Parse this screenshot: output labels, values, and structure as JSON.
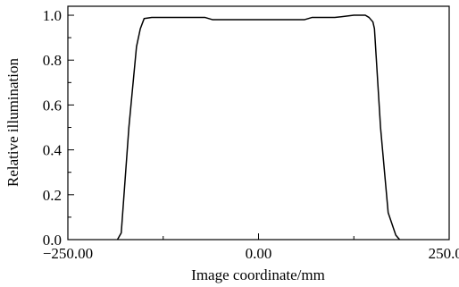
{
  "chart_data": {
    "type": "line",
    "title": "",
    "xlabel": "Image coordinate/mm",
    "ylabel": "Relative illumination",
    "xlim": [
      -250,
      250
    ],
    "ylim": [
      0,
      1.04
    ],
    "x_ticks": [
      {
        "value": -250,
        "label": "−250.00"
      },
      {
        "value": 0,
        "label": "0.00"
      },
      {
        "value": 250,
        "label": "250.00"
      }
    ],
    "y_ticks": [
      {
        "value": 0,
        "label": "0.0"
      },
      {
        "value": 0.2,
        "label": "0.2"
      },
      {
        "value": 0.4,
        "label": "0.4"
      },
      {
        "value": 0.6,
        "label": "0.6"
      },
      {
        "value": 0.8,
        "label": "0.8"
      },
      {
        "value": 1.0,
        "label": "1.0"
      }
    ],
    "grid": false,
    "legend": "none",
    "line_color": "#000000",
    "series": [
      {
        "x": [
          -185,
          -180,
          -170,
          -160,
          -155,
          -150,
          -140,
          -100,
          -70,
          -60,
          0,
          60,
          70,
          100,
          125,
          130,
          140,
          145,
          150,
          152,
          160,
          170,
          180,
          185
        ],
        "y": [
          0.0,
          0.03,
          0.5,
          0.86,
          0.94,
          0.985,
          0.99,
          0.99,
          0.99,
          0.98,
          0.98,
          0.98,
          0.99,
          0.99,
          1.0,
          1.0,
          1.0,
          0.99,
          0.97,
          0.94,
          0.5,
          0.12,
          0.02,
          0.0
        ]
      }
    ]
  }
}
